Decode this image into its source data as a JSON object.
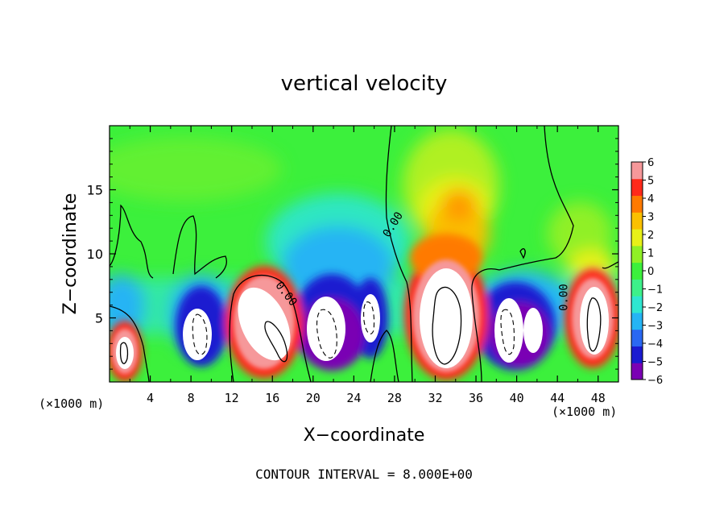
{
  "chart_data": {
    "type": "heatmap",
    "title": "vertical velocity",
    "xlabel": "X−coordinate",
    "ylabel": "Z−coordinate",
    "x_unit_left": "(×1000 m)",
    "x_unit_right": "(×1000 m)",
    "footer": "CONTOUR INTERVAL = 8.000E+00",
    "xlim": [
      0,
      50
    ],
    "ylim": [
      0,
      20
    ],
    "xticks": [
      4,
      8,
      12,
      16,
      20,
      24,
      28,
      32,
      36,
      40,
      44,
      48
    ],
    "yticks": [
      5,
      10,
      15
    ],
    "colorbar": {
      "ticks": [
        6,
        5,
        4,
        3,
        2,
        1,
        0,
        -1,
        -2,
        -3,
        -4,
        -5,
        -6
      ],
      "range": [
        -6,
        6
      ],
      "colors": [
        "#7a00b4",
        "#1a1ad0",
        "#2a68f2",
        "#25b4f4",
        "#2fe6d0",
        "#3df08a",
        "#3cf03c",
        "#90f026",
        "#e8f018",
        "#fac000",
        "#ff7a00",
        "#ff2a1a",
        "#f6989a"
      ]
    },
    "contour_labels": [
      {
        "text": "0.00",
        "x": 27.8,
        "y": 12.3,
        "rotation": -58
      },
      {
        "text": "0.00",
        "x": 17.4,
        "y": 6.9,
        "rotation": 52
      },
      {
        "text": "0.00",
        "x": 44.6,
        "y": 6.6,
        "rotation": -90
      }
    ],
    "cells": [
      {
        "x": 1.5,
        "z": 2.4,
        "value": 9,
        "rx": 1.6,
        "rz": 2.2
      },
      {
        "x": 9.0,
        "z": 4.5,
        "value": -9,
        "rx": 1.8,
        "rz": 3.0
      },
      {
        "x": 15.2,
        "z": 5.0,
        "value": 9,
        "rx": 2.6,
        "rz": 4.0
      },
      {
        "x": 21.5,
        "z": 5.0,
        "value": -9,
        "rx": 2.2,
        "rz": 3.5
      },
      {
        "x": 25.0,
        "z": 5.0,
        "value": -9,
        "rx": 1.5,
        "rz": 3.0
      },
      {
        "x": 33.0,
        "z": 5.5,
        "value": 9,
        "rx": 2.9,
        "rz": 4.7
      },
      {
        "x": 39.8,
        "z": 4.2,
        "value": -9,
        "rx": 2.2,
        "rz": 3.3
      },
      {
        "x": 47.4,
        "z": 5.0,
        "value": 9,
        "rx": 1.8,
        "rz": 3.3
      },
      {
        "x": 33.5,
        "z": 13.5,
        "value": 3,
        "rx": 2.5,
        "rz": 2.8
      }
    ]
  }
}
